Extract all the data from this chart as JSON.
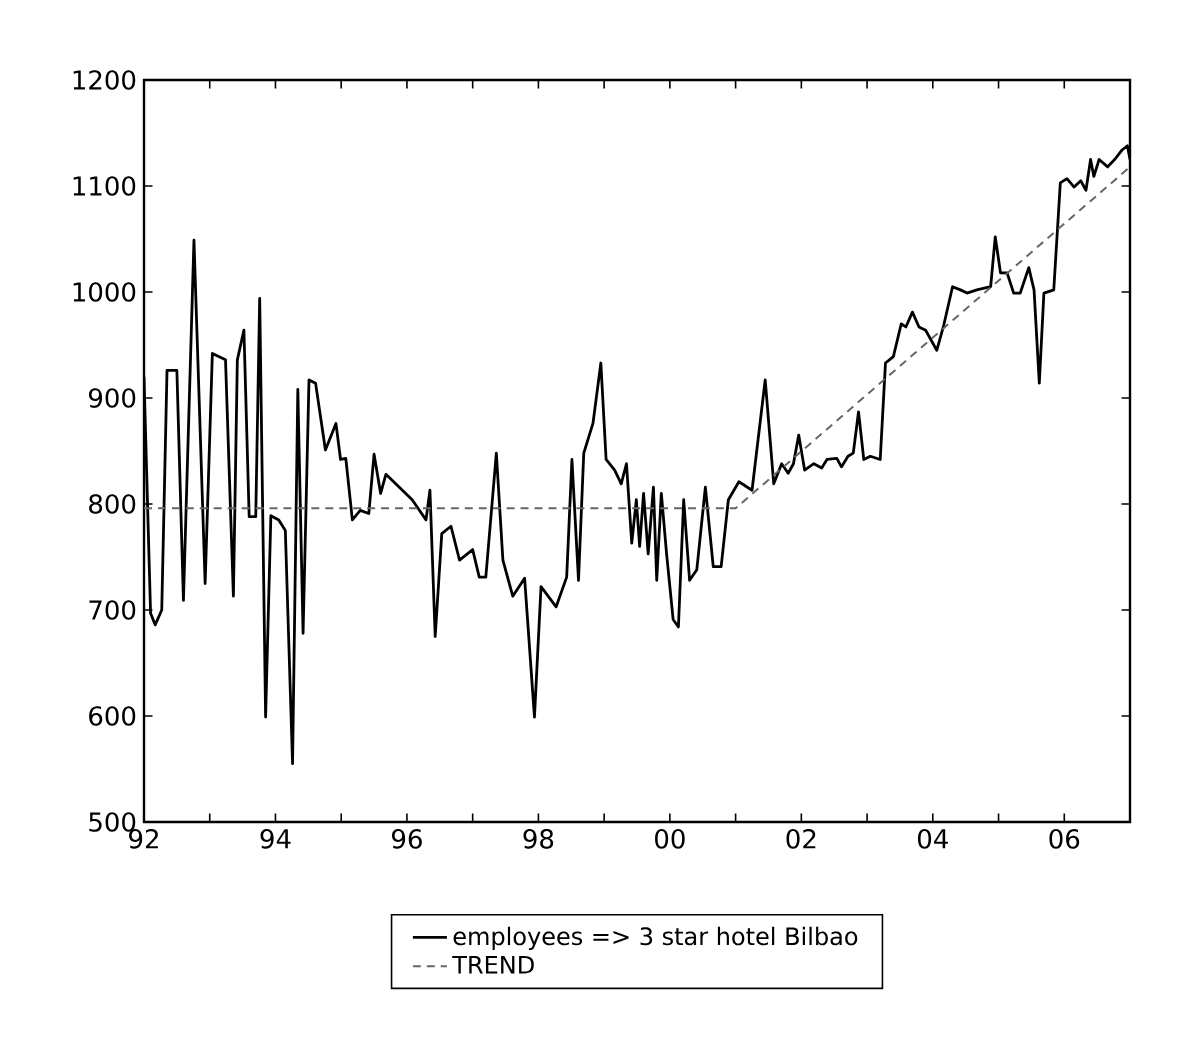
{
  "chart_data": {
    "type": "line",
    "xlim": [
      1992,
      2007.0
    ],
    "ylim": [
      500,
      1200
    ],
    "xticks": [
      {
        "value": 1992,
        "label": "92"
      },
      {
        "value": 1993,
        "label": null
      },
      {
        "value": 1994,
        "label": "94"
      },
      {
        "value": 1995,
        "label": null
      },
      {
        "value": 1996,
        "label": "96"
      },
      {
        "value": 1997,
        "label": null
      },
      {
        "value": 1998,
        "label": "98"
      },
      {
        "value": 1999,
        "label": null
      },
      {
        "value": 2000,
        "label": "00"
      },
      {
        "value": 2001,
        "label": null
      },
      {
        "value": 2002,
        "label": "02"
      },
      {
        "value": 2003,
        "label": null
      },
      {
        "value": 2004,
        "label": "04"
      },
      {
        "value": 2005,
        "label": null
      },
      {
        "value": 2006,
        "label": "06"
      }
    ],
    "yticks": [
      500,
      600,
      700,
      800,
      900,
      1000,
      1100,
      1200
    ],
    "grid": false,
    "legend": "bottom",
    "marker": "none",
    "series": [
      {
        "name": "employees => 3 star hotel Bilbao",
        "color": "#000000",
        "line_style": "solid",
        "x": [
          1992.0,
          1992.1,
          1992.17,
          1992.27,
          1992.35,
          1992.5,
          1992.6,
          1992.76,
          1992.93,
          1993.04,
          1993.24,
          1993.36,
          1993.42,
          1993.52,
          1993.6,
          1993.7,
          1993.76,
          1993.85,
          1993.93,
          1994.05,
          1994.15,
          1994.26,
          1994.34,
          1994.42,
          1994.51,
          1994.61,
          1994.76,
          1994.92,
          1994.99,
          1995.07,
          1995.17,
          1995.29,
          1995.42,
          1995.5,
          1995.6,
          1995.68,
          1995.88,
          1996.08,
          1996.29,
          1996.35,
          1996.43,
          1996.53,
          1996.67,
          1996.8,
          1997.0,
          1997.1,
          1997.2,
          1997.36,
          1997.46,
          1997.61,
          1997.79,
          1997.94,
          1998.04,
          1998.27,
          1998.43,
          1998.51,
          1998.61,
          1998.69,
          1998.83,
          1998.95,
          1999.03,
          1999.16,
          1999.26,
          1999.34,
          1999.42,
          1999.49,
          1999.54,
          1999.6,
          1999.67,
          1999.75,
          1999.8,
          1999.87,
          1999.95,
          2000.05,
          2000.13,
          2000.21,
          2000.3,
          2000.41,
          2000.54,
          2000.66,
          2000.78,
          2000.89,
          2001.05,
          2001.25,
          2001.45,
          2001.58,
          2001.7,
          2001.8,
          2001.88,
          2001.96,
          2002.05,
          2002.19,
          2002.31,
          2002.39,
          2002.54,
          2002.61,
          2002.71,
          2002.79,
          2002.87,
          2002.95,
          2003.05,
          2003.2,
          2003.28,
          2003.4,
          2003.52,
          2003.59,
          2003.69,
          2003.79,
          2003.89,
          2004.06,
          2004.16,
          2004.3,
          2004.42,
          2004.52,
          2004.67,
          2004.88,
          2004.95,
          2005.03,
          2005.13,
          2005.23,
          2005.33,
          2005.46,
          2005.54,
          2005.62,
          2005.69,
          2005.84,
          2005.94,
          2006.04,
          2006.15,
          2006.25,
          2006.33,
          2006.4,
          2006.45,
          2006.53,
          2006.66,
          2006.78,
          2006.88,
          2006.96,
          2007.0
        ],
        "values": [
          920,
          697,
          686,
          700,
          926,
          926,
          709,
          1049,
          725,
          942,
          936,
          713,
          936,
          964,
          788,
          788,
          994,
          599,
          789,
          785,
          775,
          555,
          908,
          678,
          917,
          914,
          851,
          876,
          842,
          843,
          785,
          794,
          791,
          847,
          810,
          828,
          816,
          804,
          785,
          813,
          675,
          772,
          779,
          747,
          757,
          731,
          731,
          848,
          747,
          713,
          730,
          599,
          722,
          703,
          731,
          842,
          728,
          848,
          876,
          933,
          842,
          832,
          819,
          838,
          763,
          804,
          760,
          810,
          753,
          816,
          728,
          810,
          753,
          691,
          684,
          804,
          728,
          738,
          816,
          741,
          741,
          804,
          821,
          813,
          917,
          819,
          838,
          829,
          838,
          865,
          832,
          838,
          834,
          842,
          843,
          835,
          845,
          848,
          887,
          842,
          845,
          842,
          933,
          939,
          970,
          967,
          981,
          967,
          964,
          945,
          967,
          1005,
          1002,
          999,
          1002,
          1005,
          1052,
          1018,
          1018,
          999,
          999,
          1023,
          1002,
          914,
          999,
          1002,
          1103,
          1107,
          1099,
          1105,
          1096,
          1125,
          1109,
          1125,
          1118,
          1126,
          1134,
          1138,
          1125
        ]
      },
      {
        "name": "TREND",
        "color": "#666666",
        "line_style": "dashed",
        "x": [
          1992,
          2001.0,
          2007.0
        ],
        "values": [
          796,
          796,
          1118
        ]
      }
    ]
  }
}
